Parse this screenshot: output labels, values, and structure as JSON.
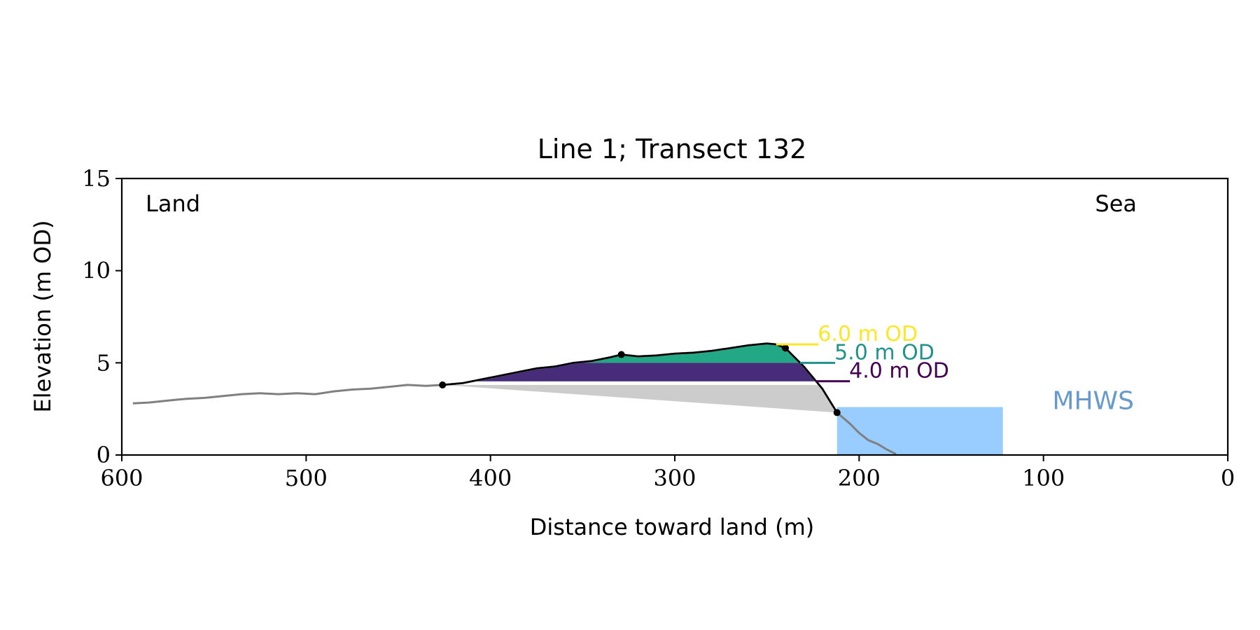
{
  "chart_data": {
    "type": "area",
    "title": "Line 1; Transect 132",
    "xlabel": "Distance toward land (m)",
    "ylabel": "Elevation (m OD)",
    "xlim": [
      600,
      0
    ],
    "ylim": [
      0,
      15
    ],
    "x_reversed": true,
    "grid": false,
    "x_ticks": [
      600,
      500,
      400,
      300,
      200,
      100,
      0
    ],
    "y_ticks": [
      0,
      5,
      10,
      15
    ],
    "corner_labels": {
      "left": "Land",
      "right": "Sea"
    },
    "profile": {
      "color": "#808080",
      "points": [
        [
          594,
          2.8
        ],
        [
          585,
          2.85
        ],
        [
          575,
          2.95
        ],
        [
          565,
          3.05
        ],
        [
          555,
          3.1
        ],
        [
          545,
          3.2
        ],
        [
          535,
          3.3
        ],
        [
          525,
          3.35
        ],
        [
          515,
          3.3
        ],
        [
          505,
          3.35
        ],
        [
          495,
          3.3
        ],
        [
          485,
          3.45
        ],
        [
          475,
          3.55
        ],
        [
          465,
          3.6
        ],
        [
          455,
          3.7
        ],
        [
          445,
          3.8
        ],
        [
          435,
          3.75
        ],
        [
          426,
          3.8
        ],
        [
          415,
          3.9
        ],
        [
          405,
          4.1
        ],
        [
          395,
          4.3
        ],
        [
          385,
          4.5
        ],
        [
          375,
          4.7
        ],
        [
          365,
          4.8
        ],
        [
          355,
          5.0
        ],
        [
          345,
          5.1
        ],
        [
          335,
          5.3
        ],
        [
          329,
          5.45
        ],
        [
          320,
          5.35
        ],
        [
          310,
          5.4
        ],
        [
          300,
          5.5
        ],
        [
          290,
          5.55
        ],
        [
          280,
          5.65
        ],
        [
          270,
          5.8
        ],
        [
          260,
          5.95
        ],
        [
          250,
          6.05
        ],
        [
          245,
          6.0
        ],
        [
          240,
          5.8
        ],
        [
          230,
          4.8
        ],
        [
          220,
          3.6
        ],
        [
          212,
          2.3
        ],
        [
          205,
          1.7
        ],
        [
          200,
          1.2
        ],
        [
          195,
          0.8
        ],
        [
          190,
          0.6
        ],
        [
          185,
          0.3
        ],
        [
          180,
          0.05
        ]
      ]
    },
    "dune_outline": {
      "color": "#000000",
      "x_from": 426,
      "x_to": 212,
      "key_points": [
        [
          426,
          3.8
        ],
        [
          329,
          5.45
        ],
        [
          240,
          5.8
        ],
        [
          212,
          2.3
        ]
      ]
    },
    "dune_base": {
      "from": [
        426,
        3.8
      ],
      "to": [
        212,
        2.3
      ],
      "fill": "#cccccc"
    },
    "levels": [
      {
        "label": "4.0 m OD",
        "elevation": 4.0,
        "band_top": 4.0,
        "band_bottom": 3.8,
        "band_color": "#ffffff",
        "line_color": "#440154",
        "label_x": 205
      },
      {
        "label": "5.0 m OD",
        "elevation": 5.0,
        "band_top": 5.0,
        "band_bottom": 4.0,
        "band_color": "#472c7a",
        "line_color": "#21918c",
        "label_x": 213
      },
      {
        "label": "6.0 m OD",
        "elevation": 6.0,
        "band_top": 6.0,
        "band_bottom": 5.0,
        "band_color": "#22a884",
        "line_color": "#fde725",
        "label_x": 222
      }
    ],
    "mhws": {
      "label": "MHWS",
      "elevation": 2.6,
      "x_from": 212,
      "x_to": 122,
      "fill": "#99ccff",
      "label_color": "#6699cc"
    }
  }
}
